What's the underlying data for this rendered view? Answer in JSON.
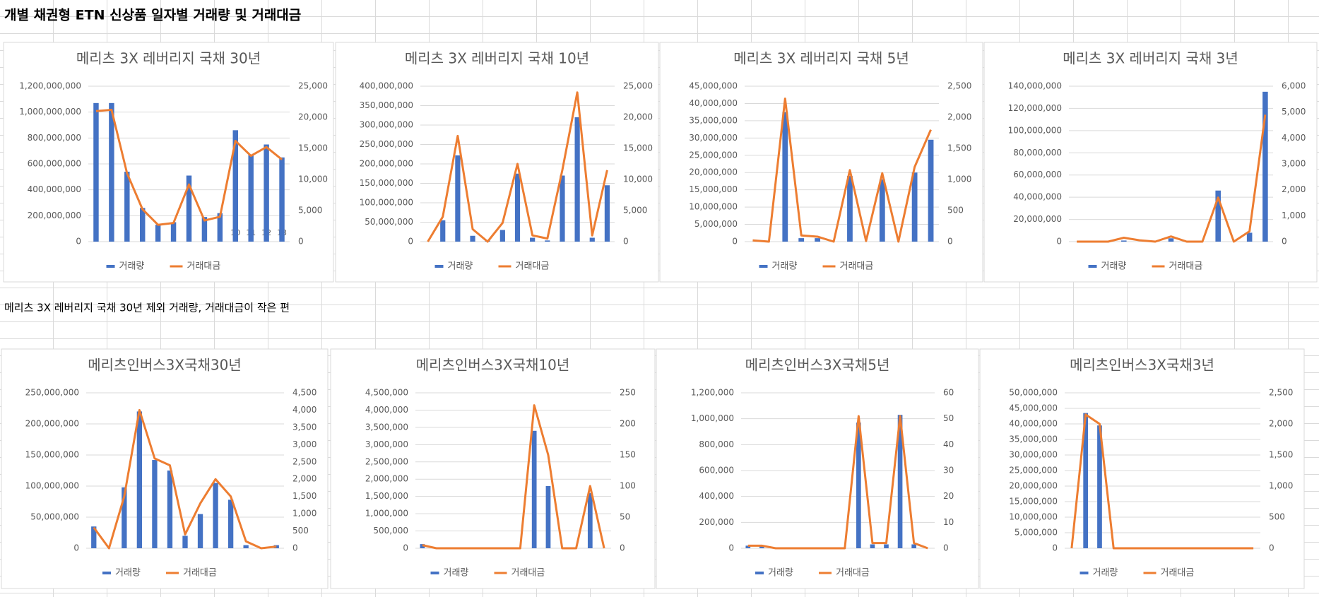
{
  "title": "개별 채권형 ETN 신상품 일자별 거래량 및 거래대금",
  "note": "메리츠 3X 레버리지 국채 30년  제외 거래량, 거래대금이 작은 편",
  "chart_data": [
    {
      "type": "combo",
      "title": "메리츠 3X 레버리지 국채 30년",
      "categories": [
        null,
        null,
        null,
        null,
        null,
        null,
        null,
        null,
        null,
        "10",
        "11",
        "12",
        "13"
      ],
      "series": [
        {
          "name": "거래량",
          "color": "#4472c4",
          "values": [
            1070000000,
            1070000000,
            540000000,
            260000000,
            130000000,
            150000000,
            510000000,
            190000000,
            220000000,
            860000000,
            670000000,
            750000000,
            650000000
          ]
        },
        {
          "name": "거래대금",
          "color": "#ed7d31",
          "axis": "y2",
          "values": [
            21000,
            21200,
            11000,
            5200,
            2700,
            3000,
            9200,
            3400,
            4000,
            16200,
            13800,
            15200,
            13200
          ]
        }
      ],
      "ylim": [
        0,
        1200000000
      ],
      "yticks": [
        0,
        {
          "value": 200000000,
          "label": "200,000,000"
        },
        {
          "value": 400000000,
          "label": "400,000,000"
        },
        {
          "value": 600000000,
          "label": "600,000,000"
        },
        {
          "value": 800000000,
          "label": "800,000,000"
        },
        {
          "value": 1000000000,
          "label": "1,000,000,000"
        },
        {
          "value": 1200000000,
          "label": "1,200,000,000"
        }
      ],
      "y2lim": [
        0,
        25000
      ],
      "y2ticks": [
        0,
        {
          "value": 5000,
          "label": "5,000"
        },
        {
          "value": 10000,
          "label": "10,000"
        },
        {
          "value": 15000,
          "label": "15,000"
        },
        {
          "value": 20000,
          "label": "20,000"
        },
        {
          "value": 25000,
          "label": "25,000"
        }
      ],
      "grid": true,
      "legend": "bottom"
    },
    {
      "type": "combo",
      "title": "메리츠 3X 레버리지 국채 10년",
      "categories": [
        null,
        null,
        null,
        null,
        null,
        null,
        null,
        null,
        null,
        null,
        null,
        null,
        null
      ],
      "series": [
        {
          "name": "거래량",
          "color": "#4472c4",
          "values": [
            0,
            55000000,
            222000000,
            15000000,
            3000000,
            30000000,
            175000000,
            10000000,
            3000000,
            170000000,
            320000000,
            10000000,
            145000000
          ]
        },
        {
          "name": "거래대금",
          "color": "#ed7d31",
          "axis": "y2",
          "values": [
            0,
            4000,
            17000,
            2000,
            0,
            3000,
            12500,
            1000,
            500,
            11500,
            24000,
            1000,
            11500
          ]
        }
      ],
      "ylim": [
        0,
        400000000
      ],
      "yticks": [
        0,
        {
          "value": 50000000,
          "label": "50,000,000"
        },
        {
          "value": 100000000,
          "label": "100,000,000"
        },
        {
          "value": 150000000,
          "label": "150,000,000"
        },
        {
          "value": 200000000,
          "label": "200,000,000"
        },
        {
          "value": 250000000,
          "label": "250,000,000"
        },
        {
          "value": 300000000,
          "label": "300,000,000"
        },
        {
          "value": 350000000,
          "label": "350,000,000"
        },
        {
          "value": 400000000,
          "label": "400,000,000"
        }
      ],
      "y2lim": [
        0,
        25000
      ],
      "y2ticks": [
        0,
        {
          "value": 5000,
          "label": "5,000"
        },
        {
          "value": 10000,
          "label": "10,000"
        },
        {
          "value": 15000,
          "label": "15,000"
        },
        {
          "value": 20000,
          "label": "20,000"
        },
        {
          "value": 25000,
          "label": "25,000"
        }
      ],
      "grid": true,
      "legend": "bottom"
    },
    {
      "type": "combo",
      "title": "메리츠 3X 레버리지 국채 5년",
      "categories": [
        null,
        null,
        null,
        null,
        null,
        null,
        null,
        null,
        null,
        null,
        null,
        null
      ],
      "series": [
        {
          "name": "거래량",
          "color": "#4472c4",
          "values": [
            0,
            0,
            37500000,
            1000000,
            1000000,
            0,
            19000000,
            0,
            18000000,
            0,
            20000000,
            29500000
          ]
        },
        {
          "name": "거래대금",
          "color": "#ed7d31",
          "axis": "y2",
          "values": [
            20,
            0,
            2300,
            100,
            80,
            0,
            1150,
            10,
            1100,
            0,
            1200,
            1800
          ]
        }
      ],
      "ylim": [
        0,
        45000000
      ],
      "yticks": [
        0,
        {
          "value": 5000000,
          "label": "5,000,000"
        },
        {
          "value": 10000000,
          "label": "10,000,000"
        },
        {
          "value": 15000000,
          "label": "15,000,000"
        },
        {
          "value": 20000000,
          "label": "20,000,000"
        },
        {
          "value": 25000000,
          "label": "25,000,000"
        },
        {
          "value": 30000000,
          "label": "30,000,000"
        },
        {
          "value": 35000000,
          "label": "35,000,000"
        },
        {
          "value": 40000000,
          "label": "40,000,000"
        },
        {
          "value": 45000000,
          "label": "45,000,000"
        }
      ],
      "y2lim": [
        0,
        2500
      ],
      "y2ticks": [
        0,
        500,
        {
          "value": 1000,
          "label": "1,000"
        },
        {
          "value": 1500,
          "label": "1,500"
        },
        {
          "value": 2000,
          "label": "2,000"
        },
        {
          "value": 2500,
          "label": "2,500"
        }
      ],
      "grid": true,
      "legend": "bottom"
    },
    {
      "type": "combo",
      "title": "메리츠 3X 레버리지 국채 3년",
      "categories": [
        null,
        null,
        null,
        null,
        null,
        null,
        null,
        null,
        null,
        null,
        null,
        null,
        null
      ],
      "series": [
        {
          "name": "거래량",
          "color": "#4472c4",
          "values": [
            0,
            0,
            0,
            1000000,
            0,
            0,
            3000000,
            0,
            0,
            46000000,
            0,
            8000000,
            135000000
          ]
        },
        {
          "name": "거래대금",
          "color": "#ed7d31",
          "axis": "y2",
          "values": [
            0,
            0,
            0,
            150,
            50,
            0,
            200,
            0,
            0,
            1700,
            0,
            400,
            4900
          ]
        }
      ],
      "ylim": [
        0,
        140000000
      ],
      "yticks": [
        0,
        {
          "value": 20000000,
          "label": "20,000,000"
        },
        {
          "value": 40000000,
          "label": "40,000,000"
        },
        {
          "value": 60000000,
          "label": "60,000,000"
        },
        {
          "value": 80000000,
          "label": "80,000,000"
        },
        {
          "value": 100000000,
          "label": "100,000,000"
        },
        {
          "value": 120000000,
          "label": "120,000,000"
        },
        {
          "value": 140000000,
          "label": "140,000,000"
        }
      ],
      "y2lim": [
        0,
        6000
      ],
      "y2ticks": [
        0,
        {
          "value": 1000,
          "label": "1,000"
        },
        {
          "value": 2000,
          "label": "2,000"
        },
        {
          "value": 3000,
          "label": "3,000"
        },
        {
          "value": 4000,
          "label": "4,000"
        },
        {
          "value": 5000,
          "label": "5,000"
        },
        {
          "value": 6000,
          "label": "6,000"
        }
      ],
      "grid": true,
      "legend": "bottom"
    },
    {
      "type": "combo",
      "title": "메리츠인버스3X국채30년",
      "categories": [
        null,
        null,
        null,
        null,
        null,
        null,
        null,
        null,
        null,
        null,
        null,
        null,
        null
      ],
      "series": [
        {
          "name": "거래량",
          "color": "#4472c4",
          "values": [
            35000000,
            0,
            98000000,
            220000000,
            142000000,
            125000000,
            20000000,
            55000000,
            105000000,
            78000000,
            5000000,
            0,
            5000000
          ]
        },
        {
          "name": "거래대금",
          "color": "#ed7d31",
          "axis": "y2",
          "values": [
            600,
            0,
            1500,
            4000,
            2600,
            2400,
            400,
            1300,
            2000,
            1500,
            200,
            0,
            50
          ]
        }
      ],
      "ylim": [
        0,
        250000000
      ],
      "yticks": [
        0,
        {
          "value": 50000000,
          "label": "50,000,000"
        },
        {
          "value": 100000000,
          "label": "100,000,000"
        },
        {
          "value": 150000000,
          "label": "150,000,000"
        },
        {
          "value": 200000000,
          "label": "200,000,000"
        },
        {
          "value": 250000000,
          "label": "250,000,000"
        }
      ],
      "y2lim": [
        0,
        4500
      ],
      "y2ticks": [
        0,
        500,
        {
          "value": 1000,
          "label": "1,000"
        },
        {
          "value": 1500,
          "label": "1,500"
        },
        {
          "value": 2000,
          "label": "2,000"
        },
        {
          "value": 2500,
          "label": "2,500"
        },
        {
          "value": 3000,
          "label": "3,000"
        },
        {
          "value": 3500,
          "label": "3,500"
        },
        {
          "value": 4000,
          "label": "4,000"
        },
        {
          "value": 4500,
          "label": "4,500"
        }
      ],
      "grid": true,
      "legend": "bottom"
    },
    {
      "type": "combo",
      "title": "메리츠인버스3X국채10년",
      "categories": [
        null,
        null,
        null,
        null,
        null,
        null,
        null,
        null,
        null,
        null,
        null,
        null,
        null,
        null
      ],
      "series": [
        {
          "name": "거래량",
          "color": "#4472c4",
          "values": [
            120000,
            0,
            0,
            0,
            0,
            0,
            0,
            0,
            3400000,
            1800000,
            0,
            0,
            1600000,
            0
          ]
        },
        {
          "name": "거래대금",
          "color": "#ed7d31",
          "axis": "y2",
          "values": [
            5,
            0,
            0,
            0,
            0,
            0,
            0,
            0,
            230,
            150,
            0,
            0,
            100,
            0
          ]
        }
      ],
      "ylim": [
        0,
        4500000
      ],
      "yticks": [
        0,
        {
          "value": 500000,
          "label": "500,000"
        },
        {
          "value": 1000000,
          "label": "1,000,000"
        },
        {
          "value": 1500000,
          "label": "1,500,000"
        },
        {
          "value": 2000000,
          "label": "2,000,000"
        },
        {
          "value": 2500000,
          "label": "2,500,000"
        },
        {
          "value": 3000000,
          "label": "3,000,000"
        },
        {
          "value": 3500000,
          "label": "3,500,000"
        },
        {
          "value": 4000000,
          "label": "4,000,000"
        },
        {
          "value": 4500000,
          "label": "4,500,000"
        }
      ],
      "y2lim": [
        0,
        250
      ],
      "y2ticks": [
        0,
        50,
        100,
        150,
        200,
        250
      ],
      "grid": true,
      "legend": "bottom"
    },
    {
      "type": "combo",
      "title": "메리츠인버스3X국채5년",
      "categories": [
        null,
        null,
        null,
        null,
        null,
        null,
        null,
        null,
        null,
        null,
        null,
        null,
        null,
        null
      ],
      "series": [
        {
          "name": "거래량",
          "color": "#4472c4",
          "values": [
            20000,
            20000,
            0,
            0,
            0,
            0,
            0,
            0,
            970000,
            30000,
            30000,
            1030000,
            30000,
            0
          ]
        },
        {
          "name": "거래대금",
          "color": "#ed7d31",
          "axis": "y2",
          "values": [
            1,
            1,
            0,
            0,
            0,
            0,
            0,
            0,
            51,
            2,
            2,
            51,
            2,
            0
          ]
        }
      ],
      "ylim": [
        0,
        1200000
      ],
      "yticks": [
        0,
        {
          "value": 200000,
          "label": "200,000"
        },
        {
          "value": 400000,
          "label": "400,000"
        },
        {
          "value": 600000,
          "label": "600,000"
        },
        {
          "value": 800000,
          "label": "800,000"
        },
        {
          "value": 1000000,
          "label": "1,000,000"
        },
        {
          "value": 1200000,
          "label": "1,200,000"
        }
      ],
      "y2lim": [
        0,
        60
      ],
      "y2ticks": [
        0,
        10,
        20,
        30,
        40,
        50,
        60
      ],
      "grid": true,
      "legend": "bottom"
    },
    {
      "type": "combo",
      "title": "메리츠인버스3X국채3년",
      "categories": [
        null,
        null,
        null,
        null,
        null,
        null,
        null,
        null,
        null,
        null,
        null,
        null,
        null,
        null
      ],
      "series": [
        {
          "name": "거래량",
          "color": "#4472c4",
          "values": [
            0,
            43500000,
            39500000,
            0,
            0,
            0,
            0,
            0,
            0,
            0,
            0,
            0,
            0,
            0
          ]
        },
        {
          "name": "거래대금",
          "color": "#ed7d31",
          "axis": "y2",
          "values": [
            0,
            2150,
            2000,
            0,
            0,
            0,
            0,
            0,
            0,
            0,
            0,
            0,
            0,
            0
          ]
        }
      ],
      "ylim": [
        0,
        50000000
      ],
      "yticks": [
        0,
        {
          "value": 5000000,
          "label": "5,000,000"
        },
        {
          "value": 10000000,
          "label": "10,000,000"
        },
        {
          "value": 15000000,
          "label": "15,000,000"
        },
        {
          "value": 20000000,
          "label": "20,000,000"
        },
        {
          "value": 25000000,
          "label": "25,000,000"
        },
        {
          "value": 30000000,
          "label": "30,000,000"
        },
        {
          "value": 35000000,
          "label": "35,000,000"
        },
        {
          "value": 40000000,
          "label": "40,000,000"
        },
        {
          "value": 45000000,
          "label": "45,000,000"
        },
        {
          "value": 50000000,
          "label": "50,000,000"
        }
      ],
      "y2lim": [
        0,
        2500
      ],
      "y2ticks": [
        0,
        500,
        {
          "value": 1000,
          "label": "1,000"
        },
        {
          "value": 1500,
          "label": "1,500"
        },
        {
          "value": 2000,
          "label": "2,000"
        },
        {
          "value": 2500,
          "label": "2,500"
        }
      ],
      "grid": true,
      "legend": "bottom"
    }
  ]
}
